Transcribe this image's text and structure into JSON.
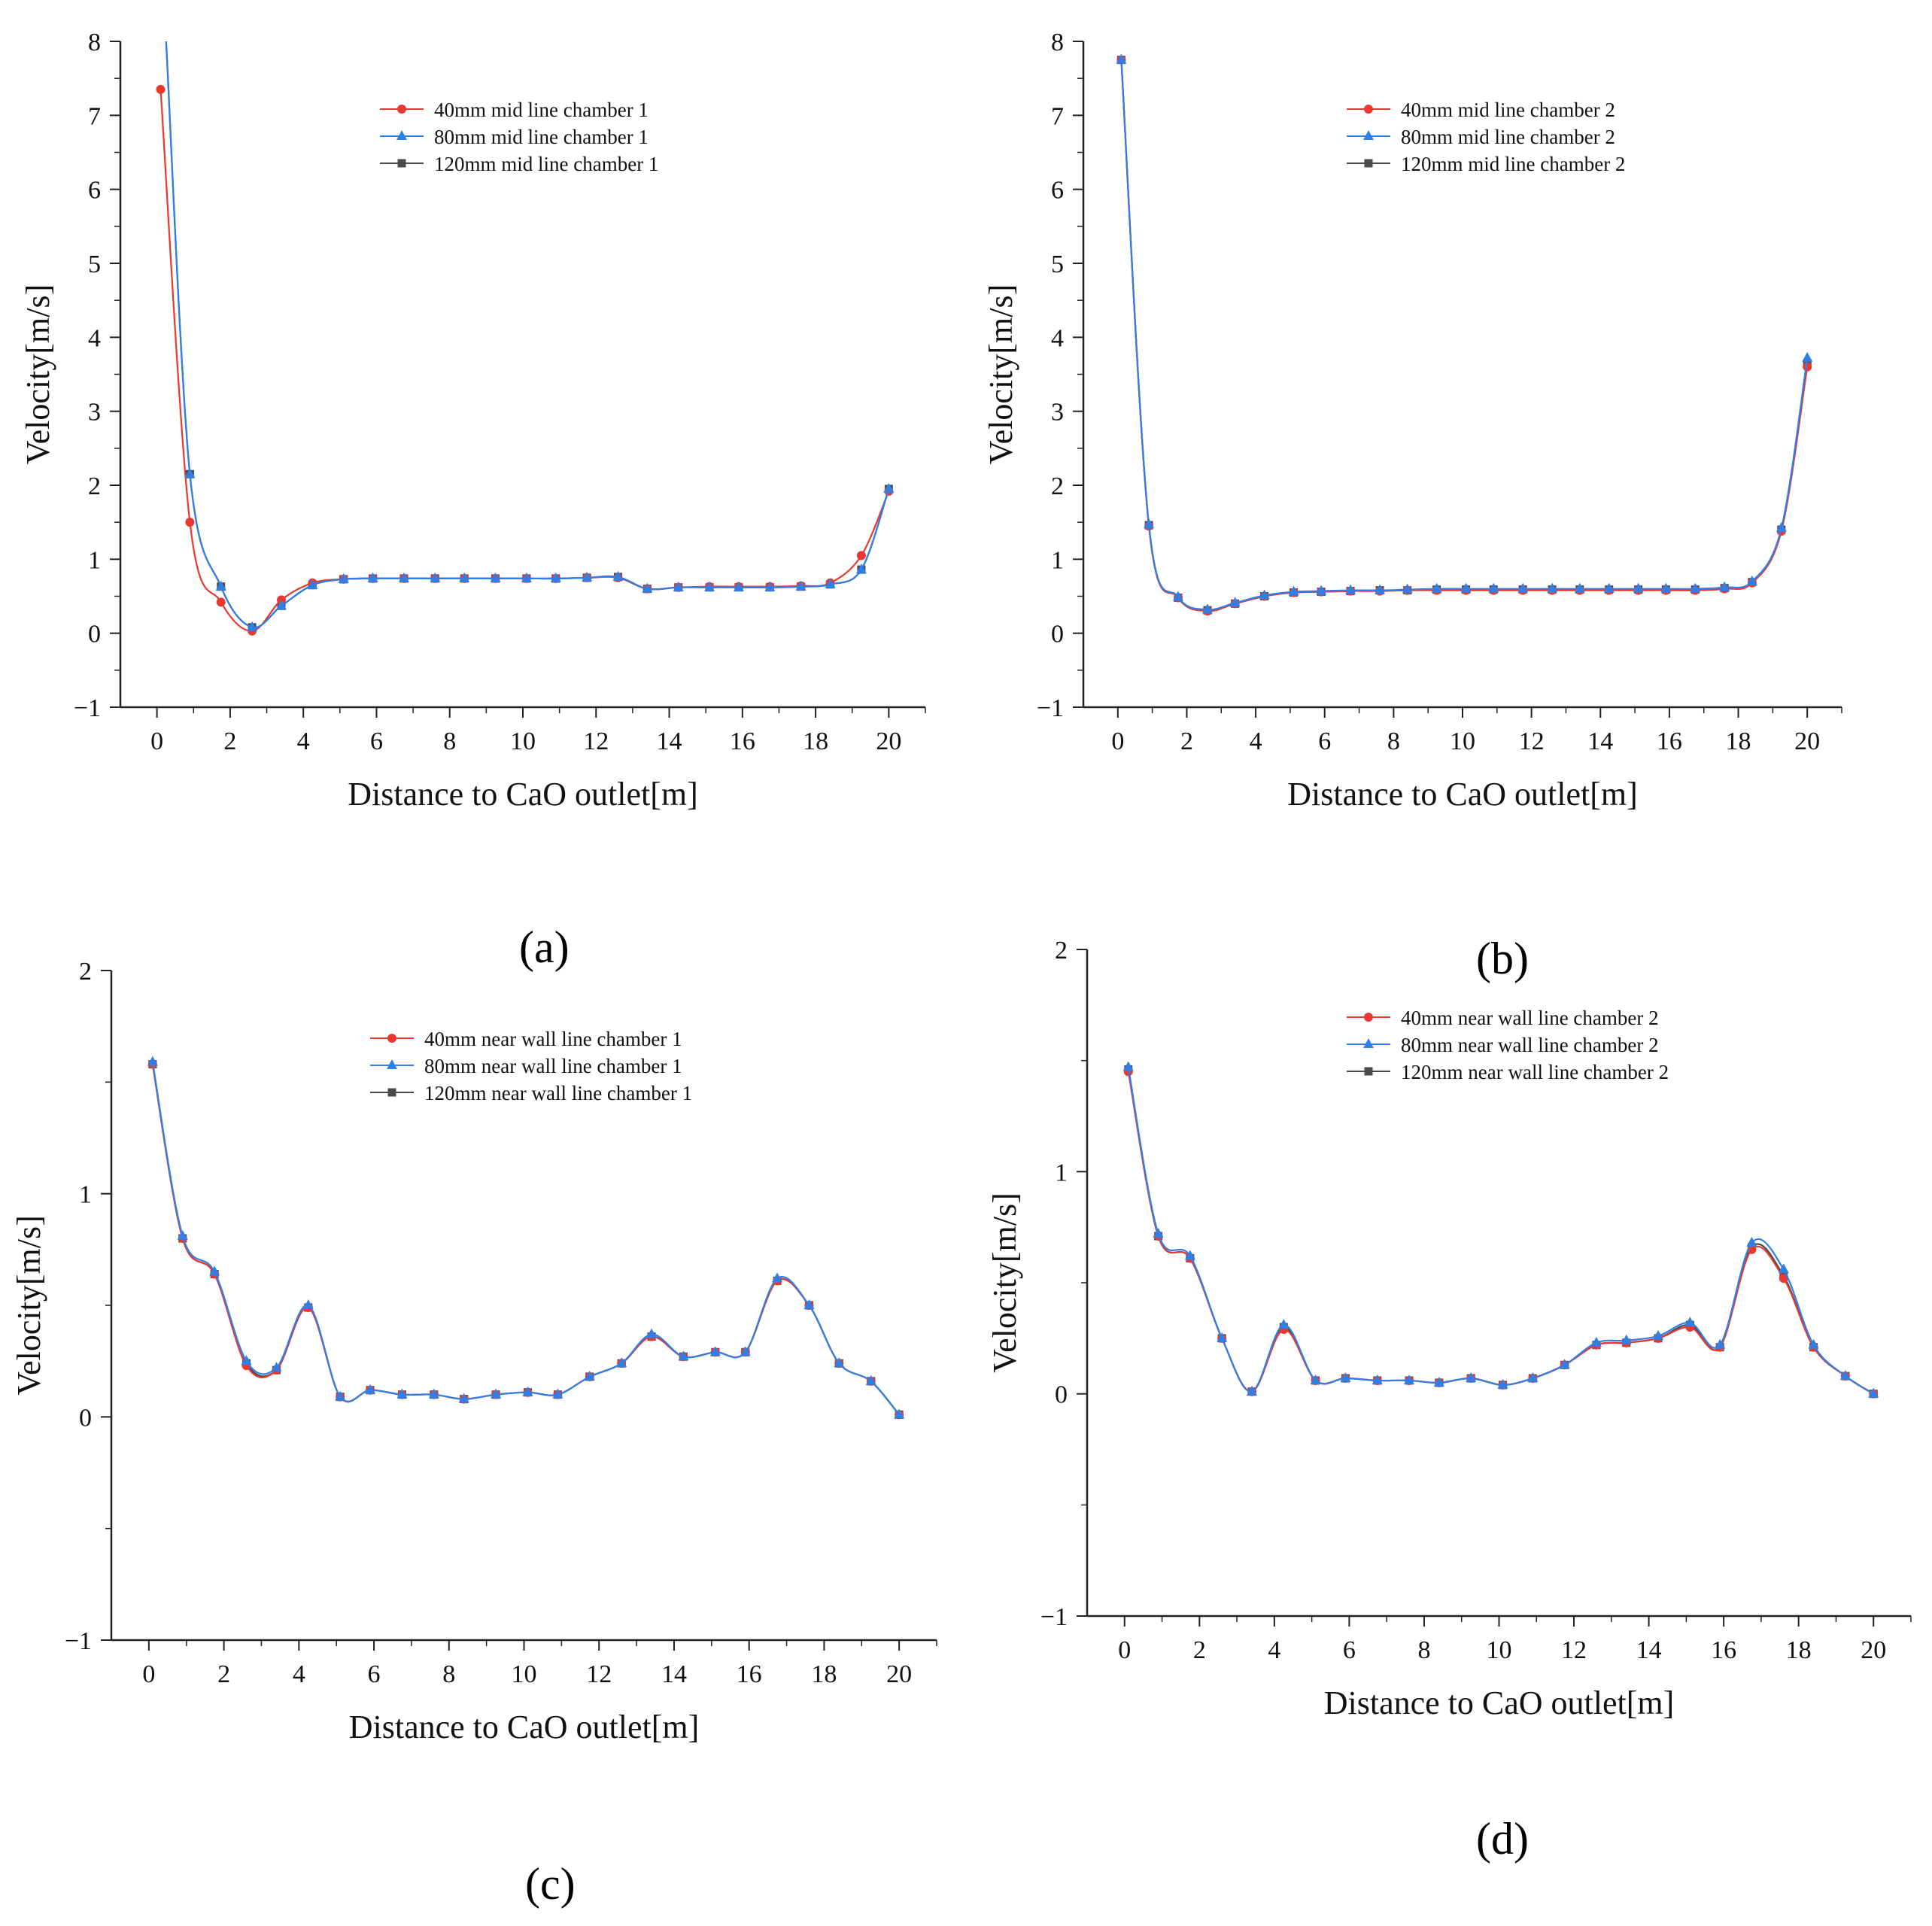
{
  "colors": {
    "s40": "#e8382f",
    "s80": "#2f7fe6",
    "s120": "#4a4a4a",
    "axis": "#222222"
  },
  "panels": [
    {
      "label": "(a)",
      "chart_data": {
        "type": "line",
        "xlabel": "Distance to  CaO outlet[m]",
        "ylabel": "Velocity[m/s]",
        "xlim": [
          -1,
          21
        ],
        "ylim": [
          -1,
          8
        ],
        "xticks": [
          0,
          2,
          4,
          6,
          8,
          10,
          12,
          14,
          16,
          18,
          20
        ],
        "yticks": [
          -1,
          0,
          1,
          2,
          3,
          4,
          5,
          6,
          7,
          8
        ],
        "series": [
          {
            "name": "40mm mid line chamber 1",
            "marker": "circle",
            "x": [
              0.1,
              0.9,
              1.75,
              2.6,
              3.4,
              4.25,
              5.1,
              5.9,
              6.75,
              7.6,
              8.4,
              9.25,
              10.1,
              10.9,
              11.75,
              12.6,
              13.4,
              14.25,
              15.1,
              15.9,
              16.75,
              17.6,
              18.4,
              19.25,
              20
            ],
            "y": [
              7.35,
              1.5,
              0.42,
              0.03,
              0.45,
              0.68,
              0.73,
              0.74,
              0.74,
              0.74,
              0.74,
              0.74,
              0.74,
              0.74,
              0.75,
              0.75,
              0.6,
              0.62,
              0.63,
              0.63,
              0.63,
              0.64,
              0.68,
              1.05,
              1.92
            ]
          },
          {
            "name": "80mm mid line chamber 1",
            "marker": "triangle",
            "x": [
              0.25,
              0.9,
              1.75,
              2.6,
              3.4,
              4.25,
              5.1,
              5.9,
              6.75,
              7.6,
              8.4,
              9.25,
              10.1,
              10.9,
              11.75,
              12.6,
              13.4,
              14.25,
              15.1,
              15.9,
              16.75,
              17.6,
              18.4,
              19.25,
              20
            ],
            "y": [
              8.0,
              2.15,
              0.63,
              0.08,
              0.37,
              0.65,
              0.73,
              0.74,
              0.74,
              0.74,
              0.74,
              0.74,
              0.74,
              0.74,
              0.75,
              0.76,
              0.6,
              0.62,
              0.62,
              0.62,
              0.62,
              0.63,
              0.66,
              0.86,
              1.95
            ]
          },
          {
            "name": "120mm mid line chamber 1",
            "marker": "square",
            "x": [
              0.25,
              0.9,
              1.75,
              2.6,
              3.4,
              4.25,
              5.1,
              5.9,
              6.75,
              7.6,
              8.4,
              9.25,
              10.1,
              10.9,
              11.75,
              12.6,
              13.4,
              14.25,
              15.1,
              15.9,
              16.75,
              17.6,
              18.4,
              19.25,
              20
            ],
            "y": [
              8.0,
              2.15,
              0.63,
              0.08,
              0.37,
              0.65,
              0.73,
              0.74,
              0.74,
              0.74,
              0.74,
              0.74,
              0.74,
              0.74,
              0.75,
              0.76,
              0.6,
              0.62,
              0.62,
              0.62,
              0.62,
              0.63,
              0.66,
              0.86,
              1.95
            ]
          }
        ]
      }
    },
    {
      "label": "(b)",
      "chart_data": {
        "type": "line",
        "xlabel": "Distance to  CaO outlet[m]",
        "ylabel": "Velocity[m/s]",
        "xlim": [
          -1,
          21
        ],
        "ylim": [
          -1,
          8
        ],
        "xticks": [
          0,
          2,
          4,
          6,
          8,
          10,
          12,
          14,
          16,
          18,
          20
        ],
        "yticks": [
          -1,
          0,
          1,
          2,
          3,
          4,
          5,
          6,
          7,
          8
        ],
        "series": [
          {
            "name": "40mm mid line chamber 2",
            "marker": "circle",
            "x": [
              0.1,
              0.9,
              1.75,
              2.6,
              3.4,
              4.25,
              5.1,
              5.9,
              6.75,
              7.6,
              8.4,
              9.25,
              10.1,
              10.9,
              11.75,
              12.6,
              13.4,
              14.25,
              15.1,
              15.9,
              16.75,
              17.6,
              18.4,
              19.25,
              20
            ],
            "y": [
              7.75,
              1.45,
              0.48,
              0.3,
              0.4,
              0.5,
              0.55,
              0.56,
              0.57,
              0.57,
              0.58,
              0.58,
              0.58,
              0.58,
              0.58,
              0.58,
              0.58,
              0.58,
              0.58,
              0.58,
              0.58,
              0.6,
              0.68,
              1.38,
              3.6
            ]
          },
          {
            "name": "80mm mid line chamber 2",
            "marker": "triangle",
            "x": [
              0.1,
              0.9,
              1.75,
              2.6,
              3.4,
              4.25,
              5.1,
              5.9,
              6.75,
              7.6,
              8.4,
              9.25,
              10.1,
              10.9,
              11.75,
              12.6,
              13.4,
              14.25,
              15.1,
              15.9,
              16.75,
              17.6,
              18.4,
              19.25,
              20
            ],
            "y": [
              7.75,
              1.47,
              0.49,
              0.32,
              0.41,
              0.51,
              0.56,
              0.57,
              0.58,
              0.58,
              0.59,
              0.6,
              0.6,
              0.6,
              0.6,
              0.6,
              0.6,
              0.6,
              0.6,
              0.6,
              0.6,
              0.62,
              0.7,
              1.42,
              3.72
            ]
          },
          {
            "name": "120mm mid line chamber 2",
            "marker": "square",
            "x": [
              0.1,
              0.9,
              1.75,
              2.6,
              3.4,
              4.25,
              5.1,
              5.9,
              6.75,
              7.6,
              8.4,
              9.25,
              10.1,
              10.9,
              11.75,
              12.6,
              13.4,
              14.25,
              15.1,
              15.9,
              16.75,
              17.6,
              18.4,
              19.25,
              20
            ],
            "y": [
              7.75,
              1.46,
              0.48,
              0.31,
              0.4,
              0.5,
              0.55,
              0.56,
              0.57,
              0.58,
              0.58,
              0.59,
              0.59,
              0.59,
              0.59,
              0.59,
              0.59,
              0.59,
              0.59,
              0.59,
              0.59,
              0.61,
              0.69,
              1.4,
              3.65
            ]
          }
        ]
      }
    },
    {
      "label": "(c)",
      "chart_data": {
        "type": "line",
        "xlabel": "Distance to  CaO outlet[m]",
        "ylabel": "Velocity[m/s]",
        "xlim": [
          -1,
          21
        ],
        "ylim": [
          -1,
          2
        ],
        "xticks": [
          0,
          2,
          4,
          6,
          8,
          10,
          12,
          14,
          16,
          18,
          20
        ],
        "yticks": [
          -1,
          0,
          1,
          2
        ],
        "series": [
          {
            "name": "40mm near wall line chamber 1",
            "marker": "circle",
            "x": [
              0.1,
              0.9,
              1.75,
              2.6,
              3.4,
              4.25,
              5.1,
              5.9,
              6.75,
              7.6,
              8.4,
              9.25,
              10.1,
              10.9,
              11.75,
              12.6,
              13.4,
              14.25,
              15.1,
              15.9,
              16.75,
              17.6,
              18.4,
              19.25,
              20
            ],
            "y": [
              1.58,
              0.8,
              0.64,
              0.23,
              0.21,
              0.49,
              0.09,
              0.12,
              0.1,
              0.1,
              0.08,
              0.1,
              0.11,
              0.1,
              0.18,
              0.24,
              0.36,
              0.27,
              0.29,
              0.29,
              0.61,
              0.5,
              0.24,
              0.16,
              0.01
            ]
          },
          {
            "name": "80mm near wall line chamber 1",
            "marker": "triangle",
            "x": [
              0.1,
              0.9,
              1.75,
              2.6,
              3.4,
              4.25,
              5.1,
              5.9,
              6.75,
              7.6,
              8.4,
              9.25,
              10.1,
              10.9,
              11.75,
              12.6,
              13.4,
              14.25,
              15.1,
              15.9,
              16.75,
              17.6,
              18.4,
              19.25,
              20
            ],
            "y": [
              1.59,
              0.81,
              0.65,
              0.25,
              0.22,
              0.5,
              0.09,
              0.12,
              0.1,
              0.1,
              0.08,
              0.1,
              0.11,
              0.1,
              0.18,
              0.24,
              0.37,
              0.27,
              0.29,
              0.29,
              0.62,
              0.5,
              0.24,
              0.16,
              0.01
            ]
          },
          {
            "name": "120mm near wall line chamber 1",
            "marker": "square",
            "x": [
              0.1,
              0.9,
              1.75,
              2.6,
              3.4,
              4.25,
              5.1,
              5.9,
              6.75,
              7.6,
              8.4,
              9.25,
              10.1,
              10.9,
              11.75,
              12.6,
              13.4,
              14.25,
              15.1,
              15.9,
              16.75,
              17.6,
              18.4,
              19.25,
              20
            ],
            "y": [
              1.58,
              0.8,
              0.64,
              0.24,
              0.21,
              0.49,
              0.09,
              0.12,
              0.1,
              0.1,
              0.08,
              0.1,
              0.11,
              0.1,
              0.18,
              0.24,
              0.36,
              0.27,
              0.29,
              0.29,
              0.61,
              0.5,
              0.24,
              0.16,
              0.01
            ]
          }
        ]
      }
    },
    {
      "label": "(d)",
      "chart_data": {
        "type": "line",
        "xlabel": "Distance to  CaO outlet[m]",
        "ylabel": "Velocity[m/s]",
        "xlim": [
          -1,
          21
        ],
        "ylim": [
          -1,
          2
        ],
        "xticks": [
          0,
          2,
          4,
          6,
          8,
          10,
          12,
          14,
          16,
          18,
          20
        ],
        "yticks": [
          -1,
          0,
          1,
          2
        ],
        "series": [
          {
            "name": "40mm near wall line chamber 2",
            "marker": "circle",
            "x": [
              0.1,
              0.9,
              1.75,
              2.6,
              3.4,
              4.25,
              5.1,
              5.9,
              6.75,
              7.6,
              8.4,
              9.25,
              10.1,
              10.9,
              11.75,
              12.6,
              13.4,
              14.25,
              15.1,
              15.9,
              16.75,
              17.6,
              18.4,
              19.25,
              20
            ],
            "y": [
              1.45,
              0.71,
              0.61,
              0.25,
              0.01,
              0.29,
              0.06,
              0.07,
              0.06,
              0.06,
              0.05,
              0.07,
              0.04,
              0.07,
              0.13,
              0.22,
              0.23,
              0.25,
              0.3,
              0.21,
              0.65,
              0.52,
              0.21,
              0.08,
              0.0
            ]
          },
          {
            "name": "80mm near wall line chamber 2",
            "marker": "triangle",
            "x": [
              0.1,
              0.9,
              1.75,
              2.6,
              3.4,
              4.25,
              5.1,
              5.9,
              6.75,
              7.6,
              8.4,
              9.25,
              10.1,
              10.9,
              11.75,
              12.6,
              13.4,
              14.25,
              15.1,
              15.9,
              16.75,
              17.6,
              18.4,
              19.25,
              20
            ],
            "y": [
              1.47,
              0.72,
              0.62,
              0.25,
              0.01,
              0.31,
              0.06,
              0.07,
              0.06,
              0.06,
              0.05,
              0.07,
              0.04,
              0.07,
              0.13,
              0.23,
              0.24,
              0.26,
              0.32,
              0.22,
              0.68,
              0.56,
              0.22,
              0.08,
              0.0
            ]
          },
          {
            "name": "120mm near wall line chamber 2",
            "marker": "square",
            "x": [
              0.1,
              0.9,
              1.75,
              2.6,
              3.4,
              4.25,
              5.1,
              5.9,
              6.75,
              7.6,
              8.4,
              9.25,
              10.1,
              10.9,
              11.75,
              12.6,
              13.4,
              14.25,
              15.1,
              15.9,
              16.75,
              17.6,
              18.4,
              19.25,
              20
            ],
            "y": [
              1.46,
              0.71,
              0.61,
              0.25,
              0.01,
              0.3,
              0.06,
              0.07,
              0.06,
              0.06,
              0.05,
              0.07,
              0.04,
              0.07,
              0.13,
              0.22,
              0.23,
              0.25,
              0.31,
              0.21,
              0.66,
              0.53,
              0.21,
              0.08,
              0.0
            ]
          }
        ]
      }
    }
  ]
}
